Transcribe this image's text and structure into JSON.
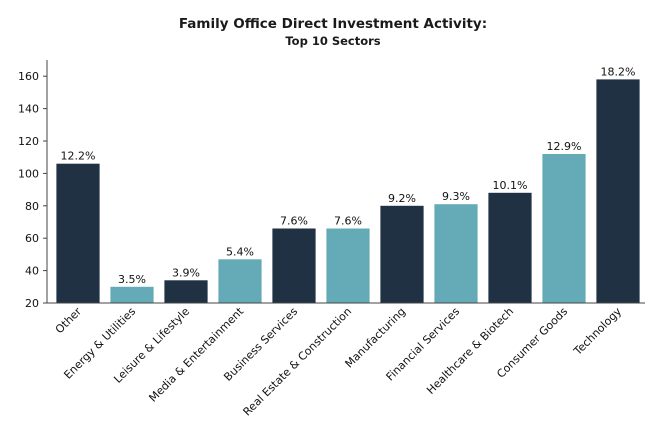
{
  "chart_data": {
    "type": "bar",
    "title": "Family Office Direct Investment Activity:",
    "subtitle": "Top 10 Sectors",
    "categories": [
      "Other",
      "Energy & Utilities",
      "Leisure & Lifestyle",
      "Media & Entertainment",
      "Business Services",
      "Real Estate & Construction",
      "Manufacturing",
      "Financial Services",
      "Healthcare & Biotech",
      "Consumer Goods",
      "Technology"
    ],
    "values": [
      106,
      30,
      34,
      47,
      66,
      66,
      80,
      81,
      88,
      112,
      158
    ],
    "data_labels": [
      "12.2%",
      "3.5%",
      "3.9%",
      "5.4%",
      "7.6%",
      "7.6%",
      "9.2%",
      "9.3%",
      "10.1%",
      "12.9%",
      "18.2%"
    ],
    "bar_colors": [
      "#1f3142",
      "#65abb7",
      "#1f3142",
      "#65abb7",
      "#1f3142",
      "#65abb7",
      "#1f3142",
      "#65abb7",
      "#1f3142",
      "#65abb7",
      "#1f3142"
    ],
    "ylim": [
      20,
      170
    ],
    "yticks": [
      20,
      40,
      60,
      80,
      100,
      120,
      140,
      160
    ],
    "xlabel": "",
    "ylabel": "",
    "grid": false,
    "legend": "none"
  }
}
